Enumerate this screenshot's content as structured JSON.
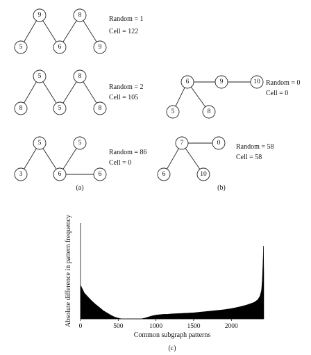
{
  "panels": {
    "a": {
      "caption": "(a)",
      "graphs": [
        {
          "nodes": [
            "9",
            "8",
            "5",
            "6",
            "9"
          ],
          "info": [
            "Random = 1",
            "Cell = 122"
          ]
        },
        {
          "nodes": [
            "5",
            "8",
            "8",
            "5",
            "8"
          ],
          "info": [
            "Random = 2",
            "Cell = 105"
          ]
        },
        {
          "nodes": [
            "5",
            "5",
            "3",
            "6",
            "6"
          ],
          "info": [
            "Random = 86",
            "Cell = 0"
          ]
        }
      ]
    },
    "b": {
      "caption": "(b)",
      "graphs": [
        {
          "nodes": [
            "6",
            "9",
            "10",
            "5",
            "8"
          ],
          "info": [
            "Random = 0",
            "Cell = 0"
          ]
        },
        {
          "nodes": [
            "7",
            "0",
            "6",
            "10"
          ],
          "info": [
            "Random = 58",
            "Cell = 58"
          ]
        }
      ]
    },
    "c": {
      "caption": "(c)"
    }
  },
  "chart_data": {
    "type": "bar",
    "xlabel": "Common subgraph patterns",
    "ylabel": "Absolute difference in pattern frequency",
    "xticks": [
      "0",
      "500",
      "1000",
      "1500",
      "2000"
    ],
    "xlim": [
      0,
      2430
    ],
    "ylim": [
      0,
      250
    ],
    "x": [
      0,
      25,
      50,
      100,
      150,
      200,
      250,
      300,
      350,
      400,
      450,
      500,
      550,
      600,
      650,
      700,
      750,
      800,
      850,
      900,
      950,
      1000,
      1050,
      1100,
      1150,
      1200,
      1300,
      1400,
      1500,
      1600,
      1700,
      1800,
      1900,
      2000,
      2100,
      2200,
      2300,
      2350,
      2380,
      2400,
      2410,
      2420,
      2425,
      2430
    ],
    "values": [
      88,
      78,
      68,
      57,
      47,
      38,
      30,
      22,
      16,
      10,
      5,
      2,
      0,
      0,
      0,
      0,
      0,
      0,
      2,
      5,
      8,
      10,
      11,
      12,
      12,
      13,
      14,
      15,
      16,
      18,
      20,
      22,
      24,
      27,
      31,
      36,
      43,
      50,
      60,
      75,
      100,
      150,
      190,
      120
    ]
  }
}
